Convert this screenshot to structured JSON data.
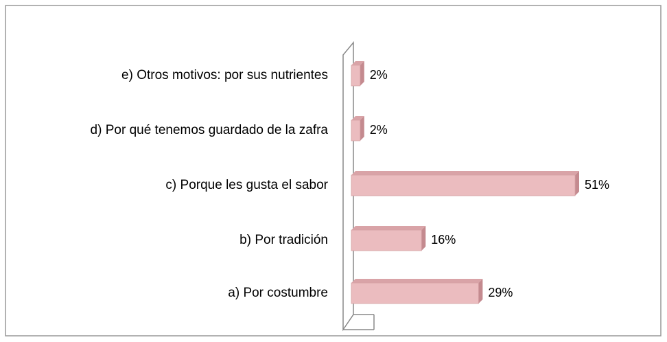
{
  "chart_data": {
    "type": "bar",
    "orientation": "horizontal",
    "categories": [
      "a) Por costumbre",
      "b) Por tradición",
      "c) Porque les gusta el sabor",
      "d) Por qué tenemos guardado de la zafra",
      "e) Otros motivos: por sus nutrientes"
    ],
    "values": [
      29,
      16,
      51,
      2,
      2
    ],
    "value_labels": [
      "29%",
      "16%",
      "51%",
      "2%",
      "2%"
    ],
    "color": "#ebbcbf"
  }
}
